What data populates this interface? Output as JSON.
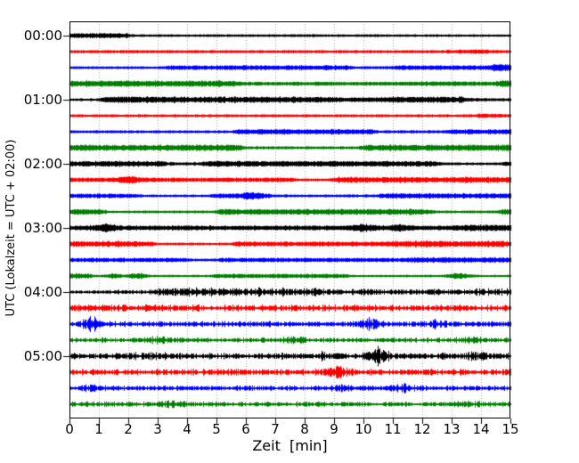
{
  "figure": {
    "title": "",
    "xlabel": "Zeit  [min]",
    "ylabel": "UTC (Lokalzeit = UTC + 02:00)"
  },
  "colors": {
    "background": "#ffffff",
    "axis": "#000000",
    "grid": "#aaaaaa",
    "trace_cycle": [
      "#000000",
      "#ff0000",
      "#0000ff",
      "#007f00"
    ]
  },
  "chart_data": {
    "type": "line",
    "subtype": "seismogram-helicorder",
    "title": "",
    "xlabel": "Zeit  [min]",
    "ylabel": "UTC (Lokalzeit = UTC + 02:00)",
    "xlim": [
      0,
      15
    ],
    "x_tick_labels": [
      "0",
      "1",
      "2",
      "3",
      "4",
      "5",
      "6",
      "7",
      "8",
      "9",
      "10",
      "11",
      "12",
      "13",
      "14",
      "15"
    ],
    "x_grid_minutes": [
      1,
      2,
      3,
      4,
      5,
      6,
      7,
      8,
      9,
      10,
      11,
      12,
      13,
      14
    ],
    "grid_style": "dotted-vertical-only",
    "legend": "none",
    "hour_labels": [
      "00:00",
      "01:00",
      "02:00",
      "03:00",
      "04:00",
      "05:00"
    ],
    "rows_per_hour": 4,
    "minutes_per_row": 15,
    "row_start_times": [
      "00:00",
      "00:15",
      "00:30",
      "00:45",
      "01:00",
      "01:15",
      "01:30",
      "01:45",
      "02:00",
      "02:15",
      "02:30",
      "02:45",
      "03:00",
      "03:15",
      "03:30",
      "03:45",
      "04:00",
      "04:15",
      "04:30",
      "04:45",
      "05:00",
      "05:15",
      "05:30",
      "05:45"
    ],
    "traces": [
      {
        "start": "00:00",
        "color": "#000000",
        "texture": "smooth",
        "envelope": [
          [
            0,
            2.4
          ],
          [
            1.9,
            2.4
          ],
          [
            2.2,
            1.2
          ],
          [
            15,
            1.2
          ]
        ],
        "bursts": []
      },
      {
        "start": "00:15",
        "color": "#ff0000",
        "texture": "smooth",
        "envelope": [
          [
            0,
            1.4
          ],
          [
            15,
            1.4
          ]
        ],
        "bursts": [
          [
            13.8,
            0.6,
            0.5
          ]
        ]
      },
      {
        "start": "00:30",
        "color": "#0000ff",
        "texture": "smooth",
        "envelope": [
          [
            0,
            1.3
          ],
          [
            3.2,
            1.3
          ],
          [
            3.5,
            2.2
          ],
          [
            9.4,
            2.2
          ],
          [
            9.7,
            1.4
          ],
          [
            10.9,
            1.4
          ],
          [
            11.1,
            2.2
          ],
          [
            14.2,
            2.2
          ],
          [
            14.5,
            3.2
          ],
          [
            15,
            3.2
          ]
        ],
        "bursts": []
      },
      {
        "start": "00:45",
        "color": "#007f00",
        "texture": "smooth",
        "envelope": [
          [
            0,
            2.8
          ],
          [
            5.6,
            2.8
          ],
          [
            5.9,
            1.8
          ],
          [
            11.4,
            1.8
          ],
          [
            11.6,
            2.1
          ],
          [
            14.4,
            2.1
          ],
          [
            14.7,
            3.0
          ],
          [
            15,
            3.0
          ]
        ],
        "bursts": []
      },
      {
        "start": "01:00",
        "color": "#000000",
        "texture": "smooth",
        "envelope": [
          [
            0,
            1.3
          ],
          [
            0.9,
            1.3
          ],
          [
            1.2,
            2.8
          ],
          [
            8.9,
            2.8
          ],
          [
            9.1,
            2.1
          ],
          [
            10.4,
            2.1
          ],
          [
            10.6,
            2.8
          ],
          [
            13.4,
            2.8
          ],
          [
            13.7,
            1.5
          ],
          [
            15,
            1.5
          ]
        ],
        "bursts": []
      },
      {
        "start": "01:15",
        "color": "#ff0000",
        "texture": "smooth",
        "envelope": [
          [
            0,
            1.3
          ],
          [
            15,
            1.3
          ]
        ],
        "bursts": [
          [
            14.3,
            0.7,
            0.4
          ]
        ]
      },
      {
        "start": "01:30",
        "color": "#0000ff",
        "texture": "smooth",
        "envelope": [
          [
            0,
            1.3
          ],
          [
            5.5,
            1.3
          ],
          [
            5.8,
            2.4
          ],
          [
            10.2,
            2.4
          ],
          [
            10.5,
            1.4
          ],
          [
            12.7,
            1.4
          ],
          [
            13.0,
            2.3
          ],
          [
            15,
            2.3
          ]
        ],
        "bursts": []
      },
      {
        "start": "01:45",
        "color": "#007f00",
        "texture": "smooth",
        "envelope": [
          [
            0,
            2.8
          ],
          [
            5.7,
            2.8
          ],
          [
            6.0,
            1.4
          ],
          [
            9.8,
            1.4
          ],
          [
            10.1,
            2.8
          ],
          [
            15,
            2.8
          ]
        ],
        "bursts": []
      },
      {
        "start": "02:00",
        "color": "#000000",
        "texture": "smooth",
        "envelope": [
          [
            0,
            2.6
          ],
          [
            3.1,
            2.6
          ],
          [
            3.4,
            1.6
          ],
          [
            4.4,
            1.6
          ],
          [
            4.7,
            2.6
          ],
          [
            12.4,
            2.6
          ],
          [
            12.7,
            1.3
          ],
          [
            14.6,
            1.3
          ],
          [
            14.8,
            2.0
          ],
          [
            15,
            2.0
          ]
        ],
        "bursts": []
      },
      {
        "start": "02:15",
        "color": "#ff0000",
        "texture": "smooth",
        "envelope": [
          [
            0,
            2.0
          ],
          [
            7.5,
            2.0
          ],
          [
            7.8,
            1.3
          ],
          [
            8.8,
            1.3
          ],
          [
            9.1,
            2.6
          ],
          [
            15,
            2.6
          ]
        ],
        "bursts": [
          [
            2.0,
            1.6,
            0.25
          ]
        ]
      },
      {
        "start": "02:30",
        "color": "#0000ff",
        "texture": "smooth",
        "envelope": [
          [
            0,
            2.0
          ],
          [
            2.2,
            2.0
          ],
          [
            2.5,
            1.2
          ],
          [
            4.7,
            1.2
          ],
          [
            5.0,
            2.2
          ],
          [
            6.6,
            2.2
          ],
          [
            6.9,
            1.3
          ],
          [
            10.4,
            1.3
          ],
          [
            10.7,
            2.4
          ],
          [
            15,
            2.4
          ]
        ],
        "bursts": [
          [
            6.2,
            1.4,
            0.25
          ]
        ]
      },
      {
        "start": "02:45",
        "color": "#007f00",
        "texture": "smooth",
        "envelope": [
          [
            0,
            2.6
          ],
          [
            1.0,
            2.6
          ],
          [
            1.3,
            1.3
          ],
          [
            4.9,
            1.3
          ],
          [
            5.2,
            2.6
          ],
          [
            12.2,
            2.6
          ],
          [
            12.5,
            1.3
          ],
          [
            14.5,
            1.3
          ],
          [
            14.7,
            2.4
          ],
          [
            15,
            2.4
          ]
        ],
        "bursts": []
      },
      {
        "start": "03:00",
        "color": "#000000",
        "texture": "smooth",
        "envelope": [
          [
            0,
            2.2
          ],
          [
            12.9,
            2.2
          ],
          [
            13.2,
            2.8
          ],
          [
            15,
            2.8
          ]
        ],
        "bursts": [
          [
            1.2,
            1.8,
            0.25
          ],
          [
            10.0,
            1.8,
            0.25
          ],
          [
            11.2,
            1.5,
            0.2
          ]
        ]
      },
      {
        "start": "03:15",
        "color": "#ff0000",
        "texture": "smooth",
        "envelope": [
          [
            0,
            2.6
          ],
          [
            2.7,
            2.6
          ],
          [
            3.0,
            1.2
          ],
          [
            5.4,
            1.2
          ],
          [
            5.7,
            2.2
          ],
          [
            10.8,
            2.2
          ],
          [
            11.1,
            2.8
          ],
          [
            15,
            2.8
          ]
        ],
        "bursts": []
      },
      {
        "start": "03:30",
        "color": "#0000ff",
        "texture": "smooth",
        "envelope": [
          [
            0,
            2.0
          ],
          [
            3.9,
            2.0
          ],
          [
            4.2,
            1.3
          ],
          [
            4.9,
            1.3
          ],
          [
            5.2,
            2.0
          ],
          [
            11.4,
            2.0
          ],
          [
            11.7,
            2.4
          ],
          [
            15,
            2.4
          ]
        ],
        "bursts": []
      },
      {
        "start": "03:45",
        "color": "#007f00",
        "texture": "smooth",
        "envelope": [
          [
            0,
            2.4
          ],
          [
            0.6,
            2.4
          ],
          [
            0.9,
            1.1
          ],
          [
            4.7,
            1.1
          ],
          [
            5.0,
            2.0
          ],
          [
            9.3,
            2.0
          ],
          [
            9.6,
            1.1
          ],
          [
            15,
            1.1
          ]
        ],
        "bursts": [
          [
            1.5,
            1.5,
            0.2
          ],
          [
            2.3,
            1.8,
            0.2
          ],
          [
            13.2,
            1.8,
            0.25
          ]
        ]
      },
      {
        "start": "04:00",
        "color": "#000000",
        "texture": "fuzzy",
        "envelope": [
          [
            0,
            1.4
          ],
          [
            2.6,
            1.4
          ],
          [
            3.0,
            3.1
          ],
          [
            8.3,
            3.1
          ],
          [
            8.6,
            2.2
          ],
          [
            9.3,
            2.4
          ],
          [
            10.4,
            2.4
          ],
          [
            10.7,
            2.1
          ],
          [
            13.3,
            2.1
          ],
          [
            13.6,
            2.5
          ],
          [
            15,
            2.5
          ]
        ],
        "bursts": []
      },
      {
        "start": "04:15",
        "color": "#ff0000",
        "texture": "fuzzy",
        "envelope": [
          [
            0,
            2.4
          ],
          [
            15,
            2.2
          ]
        ],
        "bursts": []
      },
      {
        "start": "04:30",
        "color": "#0000ff",
        "texture": "fuzzy",
        "envelope": [
          [
            0,
            2.0
          ],
          [
            15,
            2.0
          ]
        ],
        "bursts": [
          [
            0.75,
            3.5,
            0.2
          ],
          [
            10.2,
            2.6,
            0.3
          ],
          [
            12.4,
            1.6,
            0.2
          ]
        ]
      },
      {
        "start": "04:45",
        "color": "#007f00",
        "texture": "fuzzy",
        "envelope": [
          [
            0,
            1.7
          ],
          [
            15,
            1.7
          ]
        ],
        "bursts": [
          [
            3.0,
            1.6,
            0.3
          ],
          [
            7.7,
            1.6,
            0.3
          ],
          [
            13.6,
            1.2,
            0.3
          ]
        ]
      },
      {
        "start": "05:00",
        "color": "#000000",
        "texture": "fuzzy",
        "envelope": [
          [
            0,
            2.2
          ],
          [
            1.8,
            2.2
          ],
          [
            1.9,
            2.7
          ],
          [
            3.3,
            2.7
          ],
          [
            3.5,
            2.2
          ],
          [
            15,
            2.3
          ]
        ],
        "bursts": [
          [
            8.6,
            1.2,
            0.2
          ],
          [
            10.5,
            4.5,
            0.22
          ],
          [
            13.9,
            1.4,
            0.25
          ]
        ]
      },
      {
        "start": "05:15",
        "color": "#ff0000",
        "texture": "fuzzy",
        "envelope": [
          [
            0,
            2.1
          ],
          [
            15,
            2.3
          ]
        ],
        "bursts": [
          [
            9.1,
            2.2,
            0.25
          ]
        ]
      },
      {
        "start": "05:30",
        "color": "#0000ff",
        "texture": "fuzzy",
        "envelope": [
          [
            0,
            1.8
          ],
          [
            15,
            1.8
          ]
        ],
        "bursts": [
          [
            0.75,
            2.0,
            0.2
          ],
          [
            9.2,
            1.9,
            0.25
          ],
          [
            11.3,
            1.9,
            0.25
          ]
        ]
      },
      {
        "start": "05:45",
        "color": "#007f00",
        "texture": "fuzzy",
        "envelope": [
          [
            0,
            1.8
          ],
          [
            15,
            1.8
          ]
        ],
        "bursts": [
          [
            3.5,
            1.5,
            0.35
          ],
          [
            13.7,
            1.0,
            0.3
          ]
        ]
      }
    ]
  }
}
